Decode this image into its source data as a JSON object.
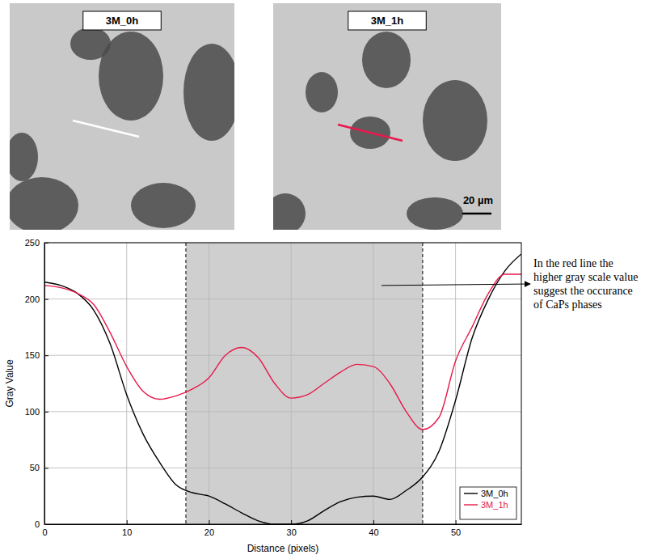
{
  "images": [
    {
      "label": "3M_0h"
    },
    {
      "label": "3M_1h"
    }
  ],
  "scale_bar": "20 µm",
  "chart_data": {
    "type": "line",
    "x_label": "Distance (pixels)",
    "y_label": "Gray Value",
    "x": [
      0,
      2,
      4,
      6,
      8,
      10,
      12,
      14,
      16,
      18,
      20,
      22,
      24,
      26,
      28,
      30,
      32,
      34,
      36,
      38,
      40,
      42,
      44,
      46,
      48,
      50,
      52,
      54,
      56,
      58
    ],
    "series": [
      {
        "name": "3M_0h",
        "color": "#000000",
        "values": [
          215,
          212,
          205,
          190,
          160,
          115,
          80,
          55,
          35,
          28,
          25,
          18,
          10,
          3,
          0,
          0,
          3,
          12,
          20,
          24,
          25,
          22,
          30,
          42,
          65,
          110,
          165,
          200,
          225,
          240
        ]
      },
      {
        "name": "3M_1h",
        "color": "#e8194b",
        "values": [
          212,
          210,
          205,
          195,
          170,
          140,
          118,
          111,
          114,
          120,
          130,
          150,
          157,
          148,
          125,
          112,
          115,
          125,
          135,
          142,
          140,
          125,
          100,
          84,
          95,
          145,
          175,
          205,
          222,
          222
        ]
      }
    ],
    "xlim": [
      0,
      58
    ],
    "ylim": [
      0,
      250
    ],
    "xticks": [
      0,
      10,
      20,
      30,
      40,
      50
    ],
    "yticks": [
      0,
      50,
      100,
      150,
      200,
      250
    ],
    "grid": true,
    "legend": "lower right",
    "highlight": [
      17.2,
      46
    ],
    "annotation": {
      "text": "In the red line the higher gray scale value suggest the occurance of CaPs phases",
      "x": 41
    }
  }
}
